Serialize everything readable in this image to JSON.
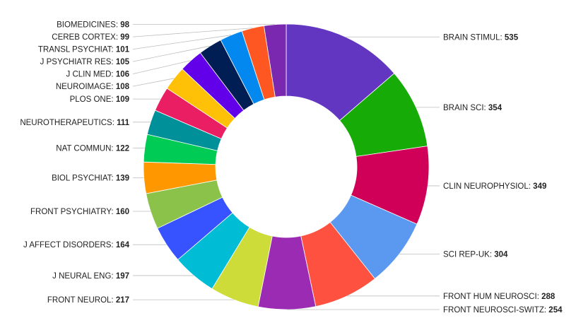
{
  "chart_data": {
    "type": "pie",
    "variant": "donut",
    "title": "",
    "order": "clockwise-from-top",
    "slices": [
      {
        "name": "BRAIN STIMUL",
        "value": 535,
        "color": "#6236c0"
      },
      {
        "name": "BRAIN SCI",
        "value": 354,
        "color": "#16ab06"
      },
      {
        "name": "CLIN NEUROPHYSIOL",
        "value": 349,
        "color": "#d00058"
      },
      {
        "name": "SCI REP-UK",
        "value": 304,
        "color": "#5b99f0"
      },
      {
        "name": "FRONT HUM NEUROSCI",
        "value": 288,
        "color": "#ff5140"
      },
      {
        "name": "FRONT NEUROSCI-SWITZ",
        "value": 254,
        "color": "#9c2bb4"
      },
      {
        "name": "FRONT NEUROL",
        "value": 217,
        "color": "#cddc39"
      },
      {
        "name": "J NEURAL ENG",
        "value": 197,
        "color": "#00bcd4"
      },
      {
        "name": "J AFFECT DISORDERS",
        "value": 164,
        "color": "#3752ff"
      },
      {
        "name": "FRONT PSYCHIATRY",
        "value": 160,
        "color": "#8bc34a"
      },
      {
        "name": "BIOL PSYCHIAT",
        "value": 139,
        "color": "#ff9800"
      },
      {
        "name": "NAT COMMUN",
        "value": 122,
        "color": "#00cc55"
      },
      {
        "name": "NEUROTHERAPEUTICS",
        "value": 111,
        "color": "#009099"
      },
      {
        "name": "PLOS ONE",
        "value": 109,
        "color": "#e91e63"
      },
      {
        "name": "NEUROIMAGE",
        "value": 108,
        "color": "#ffc107"
      },
      {
        "name": "J CLIN MED",
        "value": 106,
        "color": "#6200ea"
      },
      {
        "name": "J PSYCHIATR RES",
        "value": 105,
        "color": "#001d54"
      },
      {
        "name": "TRANSL PSYCHIAT",
        "value": 101,
        "color": "#0288ee"
      },
      {
        "name": "CEREB CORTEX",
        "value": 99,
        "color": "#ff5722"
      },
      {
        "name": "BIOMEDICINES",
        "value": 98,
        "color": "#7b28b0"
      }
    ]
  }
}
